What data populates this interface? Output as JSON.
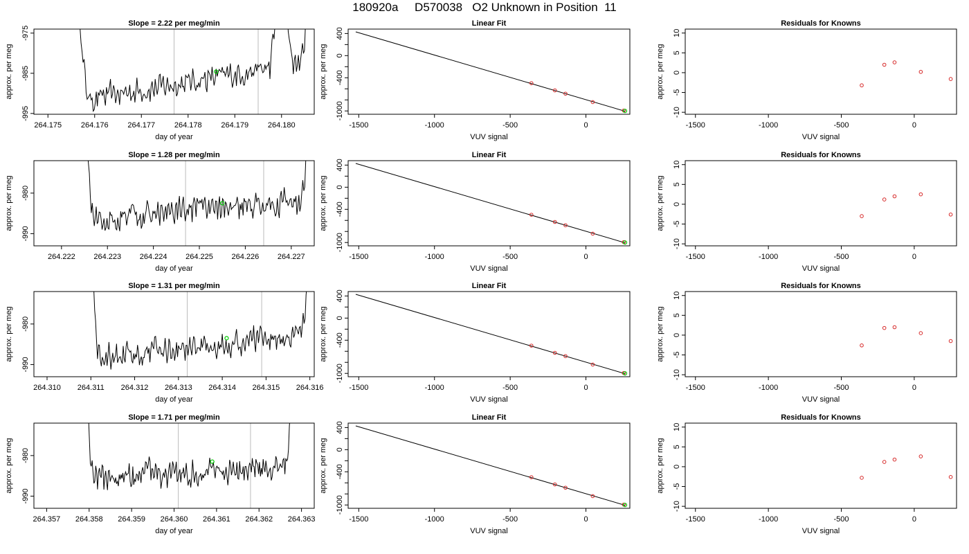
{
  "page": {
    "title": "180920a     D570038   O2 Unknown in Position  11"
  },
  "colors": {
    "trace": "#000000",
    "marker_green": "#00cc00",
    "marker_red": "#d62828",
    "gridline": "#bbbbbb",
    "frame": "#000000"
  },
  "chart_data": [
    {
      "type": "line",
      "title": "Slope =  2.22  per meg/min",
      "xlabel": "day of year",
      "ylabel": "approx. per meg",
      "xlim": [
        264.1747,
        264.1807
      ],
      "ylim": [
        -995.2,
        -974.0
      ],
      "xticks": [
        264.175,
        264.176,
        264.177,
        264.178,
        264.179,
        264.18
      ],
      "xtick_labels": [
        "264.175",
        "264.176",
        "264.177",
        "264.178",
        "264.179",
        "264.180"
      ],
      "yticks": [
        -975,
        -985,
        -995
      ],
      "ytick_labels": [
        "-975",
        "-985",
        "-995"
      ],
      "vlines": [
        264.1777,
        264.1795
      ],
      "green_point": [
        264.1786,
        -984.6
      ],
      "trace": {
        "x_start": 264.1756,
        "x_end": 264.1806,
        "baseline_start": -992.0,
        "baseline_end": -982.0,
        "noise": 2.5,
        "spike_in_end": 264.1759,
        "spike_out_start": 264.1804,
        "spike_mid": 264.18
      }
    },
    {
      "type": "scatter",
      "title": "Linear Fit",
      "xlabel": "VUV signal",
      "ylabel": "approx. per meg",
      "xlim": [
        -1570,
        290
      ],
      "ylim": [
        -1060,
        480
      ],
      "xticks": [
        -1500,
        -1000,
        -500,
        0
      ],
      "xtick_labels": [
        "-1500",
        "-1000",
        "-500",
        "0"
      ],
      "yticks": [
        400,
        0,
        -400,
        -1000
      ],
      "ytick_labels": [
        "400",
        "0",
        "-400",
        "-1000"
      ],
      "yticks_minor": [
        200,
        -200,
        -600,
        -800
      ],
      "fit_line": [
        [
          -1520,
          430
        ],
        [
          258,
          -1005
        ]
      ],
      "known_points": [
        [
          -360,
          -498
        ],
        [
          -205,
          -628
        ],
        [
          -135,
          -688
        ],
        [
          45,
          -840
        ],
        [
          250,
          -993
        ]
      ],
      "unknown_point": [
        258,
        -1000
      ]
    },
    {
      "type": "scatter",
      "title": "Residuals for Knowns",
      "xlabel": "VUV signal",
      "ylabel": "approx. per meg",
      "xlim": [
        -1570,
        290
      ],
      "ylim": [
        -10.5,
        11
      ],
      "xticks": [
        -1500,
        -1000,
        -500,
        0
      ],
      "xtick_labels": [
        "-1500",
        "-1000",
        "-500",
        "0"
      ],
      "yticks": [
        10,
        5,
        0,
        -5,
        -10
      ],
      "ytick_labels": [
        "10",
        "5",
        "0",
        "-5",
        "-10"
      ],
      "points": [
        [
          -360,
          -3.2
        ],
        [
          -205,
          2.0
        ],
        [
          -135,
          2.6
        ],
        [
          45,
          0.2
        ],
        [
          250,
          -1.6
        ]
      ]
    },
    {
      "type": "line",
      "title": "Slope =  1.28  per meg/min",
      "xlabel": "day of year",
      "ylabel": "approx. per meg",
      "xlim": [
        264.2214,
        264.2275
      ],
      "ylim": [
        -993.0,
        -972.0
      ],
      "xticks": [
        264.222,
        264.223,
        264.224,
        264.225,
        264.226,
        264.227
      ],
      "xtick_labels": [
        "264.222",
        "264.223",
        "264.224",
        "264.225",
        "264.226",
        "264.227"
      ],
      "yticks": [
        -980,
        -990
      ],
      "ytick_labels": [
        "-980",
        "-990"
      ],
      "vlines": [
        264.2247,
        264.2264
      ],
      "green_point": [
        264.2255,
        -982.5
      ],
      "trace": {
        "x_start": 264.2225,
        "x_end": 264.2274,
        "baseline_start": -986.5,
        "baseline_end": -982.0,
        "noise": 2.6,
        "spike_in_end": 264.2227,
        "spike_out_start": 264.2272,
        "spike_mid": null
      }
    },
    {
      "type": "scatter",
      "title": "Linear Fit",
      "xlabel": "VUV signal",
      "ylabel": "approx. per meg",
      "xlim": [
        -1570,
        290
      ],
      "ylim": [
        -1060,
        480
      ],
      "xticks": [
        -1500,
        -1000,
        -500,
        0
      ],
      "xtick_labels": [
        "-1500",
        "-1000",
        "-500",
        "0"
      ],
      "yticks": [
        400,
        0,
        -400,
        -1000
      ],
      "ytick_labels": [
        "400",
        "0",
        "-400",
        "-1000"
      ],
      "yticks_minor": [
        200,
        -200,
        -600,
        -800
      ],
      "fit_line": [
        [
          -1520,
          430
        ],
        [
          258,
          -1005
        ]
      ],
      "known_points": [
        [
          -360,
          -498
        ],
        [
          -205,
          -628
        ],
        [
          -135,
          -688
        ],
        [
          45,
          -840
        ],
        [
          250,
          -993
        ]
      ],
      "unknown_point": [
        258,
        -1000
      ]
    },
    {
      "type": "scatter",
      "title": "Residuals for Knowns",
      "xlabel": "VUV signal",
      "ylabel": "approx. per meg",
      "xlim": [
        -1570,
        290
      ],
      "ylim": [
        -10.5,
        11
      ],
      "xticks": [
        -1500,
        -1000,
        -500,
        0
      ],
      "xtick_labels": [
        "-1500",
        "-1000",
        "-500",
        "0"
      ],
      "yticks": [
        10,
        5,
        0,
        -5,
        -10
      ],
      "ytick_labels": [
        "10",
        "5",
        "0",
        "-5",
        "-10"
      ],
      "points": [
        [
          -360,
          -3.0
        ],
        [
          -205,
          1.2
        ],
        [
          -135,
          2.0
        ],
        [
          45,
          2.5
        ],
        [
          250,
          -2.6
        ]
      ]
    },
    {
      "type": "line",
      "title": "Slope =  1.31  per meg/min",
      "xlabel": "day of year",
      "ylabel": "approx. per meg",
      "xlim": [
        264.3097,
        264.3161
      ],
      "ylim": [
        -993.0,
        -972.0
      ],
      "xticks": [
        264.31,
        264.311,
        264.312,
        264.313,
        264.314,
        264.315,
        264.316
      ],
      "xtick_labels": [
        "264.310",
        "264.311",
        "264.312",
        "264.313",
        "264.314",
        "264.315",
        "264.316"
      ],
      "yticks": [
        -980,
        -990
      ],
      "ytick_labels": [
        "-980",
        "-990"
      ],
      "vlines": [
        264.3132,
        264.3149
      ],
      "green_point": [
        264.3141,
        -983.5
      ],
      "trace": {
        "x_start": 264.311,
        "x_end": 264.316,
        "baseline_start": -988.5,
        "baseline_end": -982.5,
        "noise": 2.5,
        "spike_in_end": 264.3112,
        "spike_out_start": 264.3158,
        "spike_mid": null
      }
    },
    {
      "type": "scatter",
      "title": "Linear Fit",
      "xlabel": "VUV signal",
      "ylabel": "approx. per meg",
      "xlim": [
        -1570,
        290
      ],
      "ylim": [
        -1060,
        480
      ],
      "xticks": [
        -1500,
        -1000,
        -500,
        0
      ],
      "xtick_labels": [
        "-1500",
        "-1000",
        "-500",
        "0"
      ],
      "yticks": [
        400,
        0,
        -400,
        -1000
      ],
      "ytick_labels": [
        "400",
        "0",
        "-400",
        "-1000"
      ],
      "yticks_minor": [
        200,
        -200,
        -600,
        -800
      ],
      "fit_line": [
        [
          -1520,
          430
        ],
        [
          258,
          -1005
        ]
      ],
      "known_points": [
        [
          -360,
          -498
        ],
        [
          -205,
          -628
        ],
        [
          -135,
          -688
        ],
        [
          45,
          -840
        ],
        [
          250,
          -993
        ]
      ],
      "unknown_point": [
        258,
        -1000
      ]
    },
    {
      "type": "scatter",
      "title": "Residuals for Knowns",
      "xlabel": "VUV signal",
      "ylabel": "approx. per meg",
      "xlim": [
        -1570,
        290
      ],
      "ylim": [
        -10.5,
        11
      ],
      "xticks": [
        -1500,
        -1000,
        -500,
        0
      ],
      "xtick_labels": [
        "-1500",
        "-1000",
        "-500",
        "0"
      ],
      "yticks": [
        10,
        5,
        0,
        -5,
        -10
      ],
      "ytick_labels": [
        "10",
        "5",
        "0",
        "-5",
        "-10"
      ],
      "points": [
        [
          -360,
          -2.6
        ],
        [
          -205,
          1.8
        ],
        [
          -135,
          2.0
        ],
        [
          45,
          0.5
        ],
        [
          250,
          -1.5
        ]
      ]
    },
    {
      "type": "line",
      "title": "Slope =  1.71  per meg/min",
      "xlabel": "day of year",
      "ylabel": "approx. per meg",
      "xlim": [
        264.3567,
        264.3633
      ],
      "ylim": [
        -993.0,
        -972.0
      ],
      "xticks": [
        264.357,
        264.358,
        264.359,
        264.36,
        264.361,
        264.362,
        264.363
      ],
      "xtick_labels": [
        "264.357",
        "264.358",
        "264.359",
        "264.360",
        "264.361",
        "264.362",
        "264.363"
      ],
      "yticks": [
        -980,
        -990
      ],
      "ytick_labels": [
        "-980",
        "-990"
      ],
      "vlines": [
        264.3601,
        264.3618
      ],
      "green_point": [
        264.3609,
        -981.5
      ],
      "trace": {
        "x_start": 264.3579,
        "x_end": 264.3628,
        "baseline_start": -986.0,
        "baseline_end": -982.5,
        "noise": 2.6,
        "spike_in_end": 264.3581,
        "spike_out_start": 264.3626,
        "spike_mid": null
      }
    },
    {
      "type": "scatter",
      "title": "Linear Fit",
      "xlabel": "VUV signal",
      "ylabel": "approx. per meg",
      "xlim": [
        -1570,
        290
      ],
      "ylim": [
        -1060,
        480
      ],
      "xticks": [
        -1500,
        -1000,
        -500,
        0
      ],
      "xtick_labels": [
        "-1500",
        "-1000",
        "-500",
        "0"
      ],
      "yticks": [
        400,
        0,
        -400,
        -1000
      ],
      "ytick_labels": [
        "400",
        "0",
        "-400",
        "-1000"
      ],
      "yticks_minor": [
        200,
        -200,
        -600,
        -800
      ],
      "fit_line": [
        [
          -1520,
          430
        ],
        [
          258,
          -1005
        ]
      ],
      "known_points": [
        [
          -360,
          -498
        ],
        [
          -205,
          -628
        ],
        [
          -135,
          -688
        ],
        [
          45,
          -840
        ],
        [
          250,
          -993
        ]
      ],
      "unknown_point": [
        258,
        -1000
      ]
    },
    {
      "type": "scatter",
      "title": "Residuals for Knowns",
      "xlabel": "VUV signal",
      "ylabel": "approx. per meg",
      "xlim": [
        -1570,
        290
      ],
      "ylim": [
        -10.5,
        11
      ],
      "xticks": [
        -1500,
        -1000,
        -500,
        0
      ],
      "xtick_labels": [
        "-1500",
        "-1000",
        "-500",
        "0"
      ],
      "yticks": [
        10,
        5,
        0,
        -5,
        -10
      ],
      "points": [
        [
          -360,
          -2.8
        ],
        [
          -205,
          1.2
        ],
        [
          -135,
          1.8
        ],
        [
          45,
          2.6
        ],
        [
          250,
          -2.6
        ]
      ],
      "ytick_labels": [
        "10",
        "5",
        "0",
        "-5",
        "-10"
      ]
    }
  ]
}
